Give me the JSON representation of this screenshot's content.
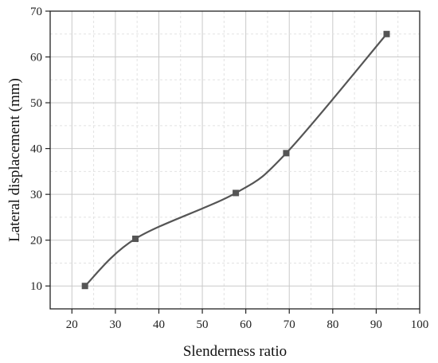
{
  "chart_data": {
    "type": "line",
    "title": "",
    "xlabel": "Slenderness ratio",
    "ylabel": "Lateral displacement (mm)",
    "xlim": [
      15,
      100
    ],
    "ylim": [
      5,
      70
    ],
    "x_ticks": [
      20,
      30,
      40,
      50,
      60,
      70,
      80,
      90,
      100
    ],
    "y_ticks": [
      10,
      20,
      30,
      40,
      50,
      60,
      70
    ],
    "grid": true,
    "smooth": true,
    "marker": "square",
    "colors": {
      "line": "#555555",
      "marker": "#555555"
    },
    "series": [
      {
        "x": [
          23,
          34.6,
          57.7,
          69.3,
          92.4
        ],
        "values": [
          10,
          20.3,
          30.3,
          39,
          65
        ]
      }
    ]
  }
}
